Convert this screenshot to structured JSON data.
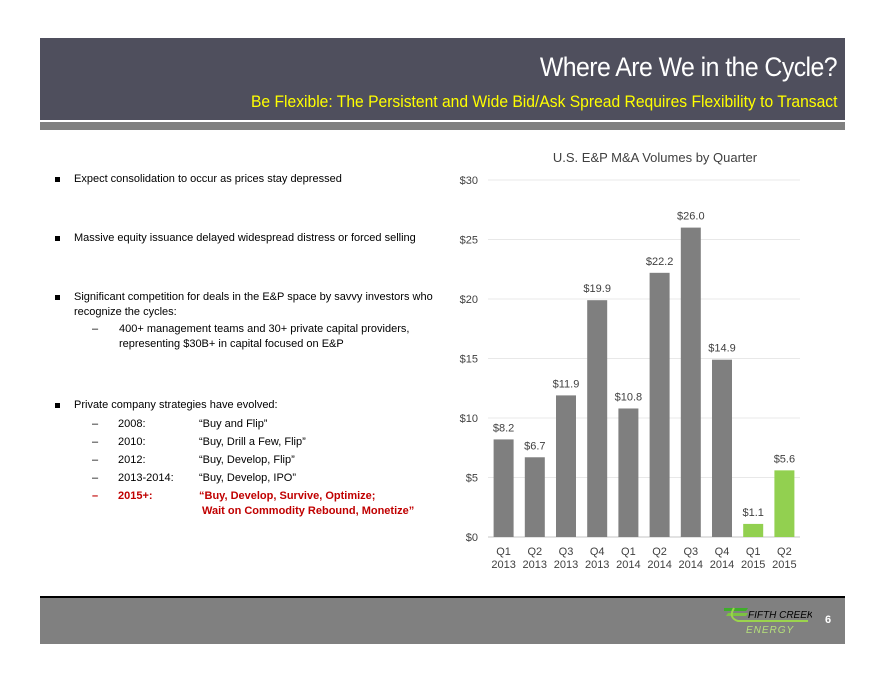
{
  "header": {
    "title": "Where Are We in the Cycle?",
    "subtitle": "Be Flexible: The Persistent and Wide Bid/Ask Spread Requires Flexibility to Transact"
  },
  "bullets": [
    {
      "text": "Expect consolidation to occur as prices stay depressed"
    },
    {
      "text": "Massive equity issuance delayed widespread distress or forced selling"
    },
    {
      "text_line1": "Significant competition for deals in the E&P space by savvy investors who",
      "text_line2": "recognize the cycles:",
      "sub": {
        "line1": "400+ management teams and 30+ private capital providers,",
        "line2": "representing $30B+ in capital focused on E&P"
      }
    },
    {
      "text": "Private company strategies have evolved:",
      "strategies": [
        {
          "year": "2008:",
          "strategy": "“Buy and Flip”"
        },
        {
          "year": "2010:",
          "strategy": "“Buy, Drill a Few, Flip”"
        },
        {
          "year": "2012:",
          "strategy": "“Buy, Develop, Flip”"
        },
        {
          "year": "2013-2014:",
          "strategy": "“Buy, Develop, IPO”"
        },
        {
          "year": "2015+:",
          "strategy": "“Buy, Develop, Survive, Optimize;",
          "strategy_line2": "Wait on Commodity Rebound, Monetize”"
        }
      ]
    }
  ],
  "dash": "–",
  "chart_data": {
    "type": "bar",
    "title": "U.S. E&P M&A Volumes by Quarter",
    "xlabel": "",
    "ylabel": "",
    "ylim": [
      0,
      30
    ],
    "yticks": [
      0,
      5,
      10,
      15,
      20,
      25,
      30
    ],
    "ytick_labels": [
      "$0",
      "$5",
      "$10",
      "$15",
      "$20",
      "$25",
      "$30"
    ],
    "grid": true,
    "categories": [
      [
        "Q1",
        "2013"
      ],
      [
        "Q2",
        "2013"
      ],
      [
        "Q3",
        "2013"
      ],
      [
        "Q4",
        "2013"
      ],
      [
        "Q1",
        "2014"
      ],
      [
        "Q2",
        "2014"
      ],
      [
        "Q3",
        "2014"
      ],
      [
        "Q4",
        "2014"
      ],
      [
        "Q1",
        "2015"
      ],
      [
        "Q2",
        "2015"
      ]
    ],
    "values": [
      8.2,
      6.7,
      11.9,
      19.9,
      10.8,
      22.2,
      26.0,
      14.9,
      1.1,
      5.6
    ],
    "data_labels": [
      "$8.2",
      "$6.7",
      "$11.9",
      "$19.9",
      "$10.8",
      "$22.2",
      "$26.0",
      "$14.9",
      "$1.1",
      "$5.6"
    ],
    "colors": [
      "#7f7f7f",
      "#7f7f7f",
      "#7f7f7f",
      "#7f7f7f",
      "#7f7f7f",
      "#7f7f7f",
      "#7f7f7f",
      "#7f7f7f",
      "#92d050",
      "#92d050"
    ]
  },
  "footer": {
    "logo_line1": "FIFTH CREEK",
    "logo_line2": "ENERGY",
    "page_number": "6"
  },
  "colors": {
    "header_bg": "#4f4f5d",
    "subtitle": "#ffff00",
    "accent_red": "#c00000",
    "bar_gray": "#7f7f7f",
    "bar_green": "#92d050"
  }
}
